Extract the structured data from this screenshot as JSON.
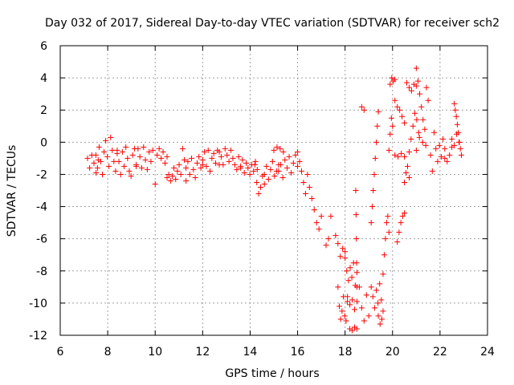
{
  "chart_data": {
    "type": "scatter",
    "title": "Day 032 of 2017, Sidereal Day-to-day VTEC variation (SDTVAR) for receiver sch2",
    "xlabel": "GPS time / hours",
    "ylabel": "SDTVAR / TECUs",
    "xlim": [
      6,
      24
    ],
    "ylim": [
      -12,
      6
    ],
    "xticks": [
      6,
      8,
      10,
      12,
      14,
      16,
      18,
      20,
      22,
      24
    ],
    "yticks": [
      -12,
      -10,
      -8,
      -6,
      -4,
      -2,
      0,
      2,
      4,
      6
    ],
    "grid": true,
    "marker": "plus",
    "color": "#ff0000",
    "series": [
      {
        "name": "SDTVAR",
        "segments": [
          {
            "x0": 7.15,
            "x1": 7.6,
            "y": [
              -1.0,
              -1.6,
              -0.8,
              -1.3,
              -1.9,
              -1.1
            ]
          },
          {
            "x0": 7.5,
            "x1": 8.4,
            "y": [
              -0.8,
              -1.6,
              -0.3,
              -1.2,
              -2.0,
              -0.6,
              0.1,
              -0.9,
              -1.5,
              0.3,
              -0.5,
              -1.2,
              -1.8,
              -0.7
            ]
          },
          {
            "x0": 8.4,
            "x1": 9.2,
            "y": [
              -0.5,
              -1.2,
              -2.0,
              -0.6,
              -1.5,
              -0.3,
              -1.0,
              -1.8,
              -2.1,
              -0.8,
              -0.4,
              -1.4
            ]
          },
          {
            "x0": 9.2,
            "x1": 9.9,
            "y": [
              -1.5,
              -0.4,
              -0.9,
              -1.6,
              -0.3,
              -1.1,
              -1.7,
              -0.6,
              -1.2,
              -0.5
            ]
          },
          {
            "x0": 10.0,
            "x1": 10.5,
            "y": [
              -2.6,
              -0.8,
              -0.4,
              -1.0,
              -0.6,
              -1.3,
              -0.9
            ]
          },
          {
            "x0": 10.5,
            "x1": 11.3,
            "y": [
              -2.2,
              -2.0,
              -2.4,
              -2.1,
              -1.6,
              -2.3,
              -1.8,
              -1.4,
              -2.0,
              -0.4,
              -1.1,
              -2.4
            ]
          },
          {
            "x0": 11.3,
            "x1": 12.0,
            "y": [
              -1.6,
              -1.2,
              -2.0,
              -1.0,
              -1.7,
              -2.2,
              -1.3,
              -0.9,
              -1.6,
              -1.4
            ]
          },
          {
            "x0": 12.0,
            "x1": 12.7,
            "y": [
              -1.1,
              -0.6,
              -1.5,
              -0.5,
              -1.8,
              -1.0,
              -0.7,
              -1.3,
              -0.5,
              -1.4
            ]
          },
          {
            "x0": 12.7,
            "x1": 13.6,
            "y": [
              -0.6,
              -0.9,
              -1.4,
              -0.4,
              -0.8,
              -1.2,
              -0.5,
              -1.0,
              -1.4,
              -1.7,
              -0.9,
              -1.6
            ]
          },
          {
            "x0": 13.6,
            "x1": 14.3,
            "y": [
              -1.5,
              -1.1,
              -1.9,
              -1.3,
              -1.6,
              -2.0,
              -1.4,
              -1.8,
              -1.2,
              -1.7
            ]
          },
          {
            "x0": 14.2,
            "x1": 14.6,
            "y": [
              -1.4,
              -2.5,
              -3.2,
              -2.8,
              -2.1,
              -2.6
            ]
          },
          {
            "x0": 14.6,
            "x1": 15.2,
            "y": [
              -2.0,
              -1.5,
              -2.3,
              -1.7,
              -1.2,
              -2.1,
              -1.8,
              -1.4
            ]
          },
          {
            "x0": 15.0,
            "x1": 15.4,
            "y": [
              -0.5,
              -0.3,
              -0.4,
              -0.6
            ]
          },
          {
            "x0": 15.2,
            "x1": 16.0,
            "y": [
              -1.8,
              -1.4,
              -2.2,
              -1.1,
              -1.6,
              -0.9,
              -1.9,
              -1.3,
              -0.8,
              -1.5
            ]
          },
          {
            "x0": 16.0,
            "x1": 16.5,
            "y": [
              -0.6,
              -1.2,
              -1.8,
              -2.5,
              -3.2,
              -2.0,
              -2.8
            ]
          },
          {
            "x0": 16.6,
            "x1": 17.0,
            "y": [
              -3.5,
              -4.2,
              -5.0,
              -5.4,
              -4.6
            ]
          },
          {
            "x0": 17.2,
            "x1": 17.4,
            "y": [
              -6.4,
              -6.0,
              -4.6
            ]
          },
          {
            "x0": 17.6,
            "x1": 18.0,
            "y": [
              -5.8,
              -6.3,
              -7.1,
              -6.6,
              -6.8
            ]
          },
          {
            "x0": 17.7,
            "x1": 18.1,
            "y": [
              -9.0,
              -10.2,
              -11.0,
              -10.5,
              -9.6,
              -10.8,
              -11.1,
              -9.9
            ]
          },
          {
            "x0": 18.0,
            "x1": 18.5,
            "y": [
              -7.2,
              -8.0,
              -8.6,
              -7.8,
              -8.4,
              -7.5,
              -8.9,
              -8.1
            ]
          },
          {
            "x0": 18.1,
            "x1": 18.5,
            "y": [
              -9.6,
              -10.1,
              -9.8,
              -10.4,
              -9.9
            ]
          },
          {
            "x0": 18.2,
            "x1": 18.5,
            "y": [
              -11.6,
              -11.7,
              -11.5,
              -11.6
            ]
          },
          {
            "x0": 18.45,
            "x1": 18.5,
            "y": [
              -3.0,
              -4.5,
              -6.0,
              -7.5,
              -9.0
            ]
          },
          {
            "x0": 18.7,
            "x1": 18.8,
            "y": [
              2.2,
              2.0
            ]
          },
          {
            "x0": 18.6,
            "x1": 19.0,
            "y": [
              -9.0,
              -10.3,
              -11.1,
              -9.5,
              -10.8
            ]
          },
          {
            "x0": 19.1,
            "x1": 19.4,
            "y": [
              -5.0,
              -4.0,
              -3.0,
              -2.0,
              -1.0,
              0.0,
              1.0,
              1.9
            ]
          },
          {
            "x0": 19.1,
            "x1": 19.6,
            "y": [
              -9.0,
              -9.6,
              -10.3,
              -9.2,
              -10.0,
              -8.8,
              -9.8,
              -10.5
            ]
          },
          {
            "x0": 19.4,
            "x1": 19.55,
            "y": [
              -10.8,
              -11.3,
              -11.0
            ]
          },
          {
            "x0": 19.6,
            "x1": 19.85,
            "y": [
              -8.2,
              -7.0,
              -6.0,
              -5.0,
              -4.6,
              -5.6
            ]
          },
          {
            "x0": 19.85,
            "x1": 20.0,
            "y": [
              -0.5,
              0.5,
              1.5,
              1.0
            ]
          },
          {
            "x0": 19.9,
            "x1": 20.1,
            "y": [
              3.6,
              4.0,
              3.8,
              3.9
            ]
          },
          {
            "x0": 20.1,
            "x1": 20.5,
            "y": [
              2.6,
              2.2,
              2.0,
              1.6,
              1.2
            ]
          },
          {
            "x0": 20.1,
            "x1": 20.5,
            "y": [
              -0.8,
              -0.9,
              -0.7,
              -0.9
            ]
          },
          {
            "x0": 20.2,
            "x1": 20.5,
            "y": [
              -6.2,
              -5.6,
              -5.0,
              -4.6,
              -4.4
            ]
          },
          {
            "x0": 20.5,
            "x1": 20.7,
            "y": [
              -2.5,
              -1.9,
              -1.5,
              -2.2
            ]
          },
          {
            "x0": 20.6,
            "x1": 21.0,
            "y": [
              3.7,
              3.4,
              3.2,
              3.6,
              3.5
            ]
          },
          {
            "x0": 20.7,
            "x1": 21.1,
            "y": [
              -0.6,
              0.2,
              1.0,
              1.8,
              1.4,
              0.6
            ]
          },
          {
            "x0": 21.0,
            "x1": 21.5,
            "y": [
              4.6,
              3.8,
              3.0,
              2.2,
              1.4,
              0.8,
              3.4,
              2.6
            ]
          },
          {
            "x0": 21.0,
            "x1": 21.4,
            "y": [
              -0.5,
              0.3,
              0.0,
              -0.2
            ]
          },
          {
            "x0": 21.6,
            "x1": 22.2,
            "y": [
              -0.8,
              -1.8,
              0.6,
              -0.4,
              -1.2,
              -0.2,
              -0.9,
              0.2,
              -1.0
            ]
          },
          {
            "x0": 22.2,
            "x1": 22.5,
            "y": [
              -0.4,
              -1.2,
              -0.8,
              -0.3
            ]
          },
          {
            "x0": 22.5,
            "x1": 22.8,
            "y": [
              0.2,
              -0.2,
              0.5,
              0.0
            ]
          },
          {
            "x0": 22.6,
            "x1": 22.9,
            "y": [
              2.4,
              2.0,
              1.6,
              1.1,
              0.6,
              0.0,
              -0.4,
              -0.8
            ]
          }
        ]
      }
    ]
  }
}
